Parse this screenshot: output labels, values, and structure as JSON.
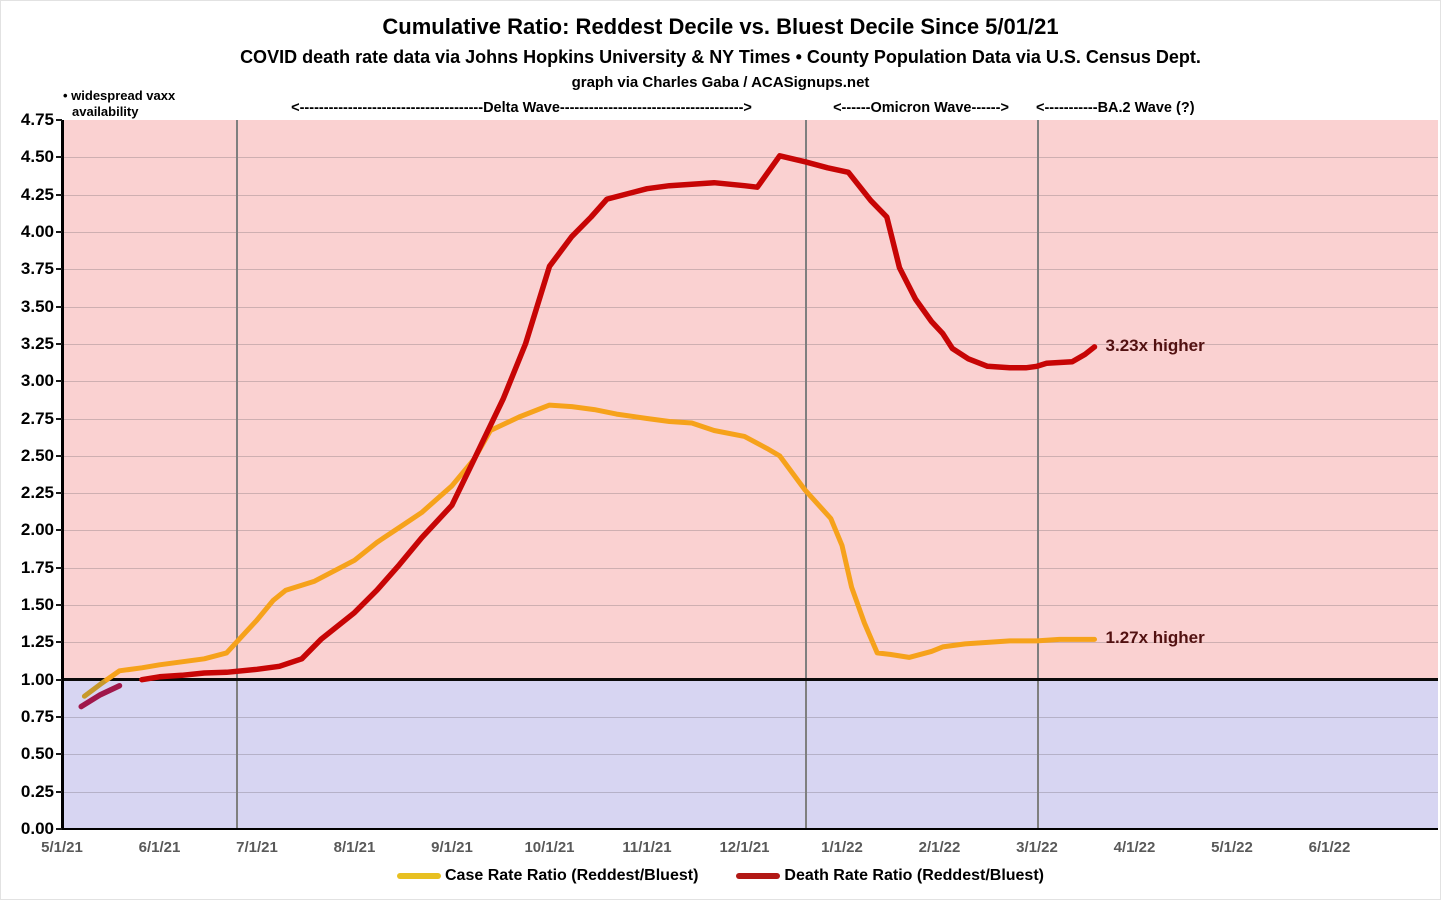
{
  "header": {
    "title": "Cumulative Ratio: Reddest Decile vs. Bluest Decile Since 5/01/21",
    "subtitle": "COVID death rate data via Johns Hopkins University & NY Times • County Population Data via U.S. Census Dept.",
    "credit": "graph via Charles Gaba / ACASignups.net"
  },
  "annotations": {
    "vaxx_note_line1": "• widespread vaxx",
    "vaxx_note_line2": "availability",
    "delta_wave": "<--------------------------------------Delta Wave-------------------------------------->",
    "omicron_wave": "<------Omicron Wave------>",
    "ba2_wave": "<-----------BA.2 Wave (?)"
  },
  "end_labels": {
    "death": "3.23x higher",
    "case": "1.27x higher"
  },
  "legend": [
    {
      "label": "Case Rate Ratio (Reddest/Bluest)",
      "color": "#e8c021"
    },
    {
      "label": "Death Rate Ratio (Reddest/Bluest)",
      "color": "#b21815"
    }
  ],
  "colors": {
    "above_one_background": "#fad1d1",
    "below_one_background": "#d7d5f2",
    "one_ratio_line": "#0a0a0a",
    "wave_boundary_line": "#7f7f7f",
    "end_label_text": "#521111",
    "x_label_text": "#595959"
  },
  "chart_data": {
    "type": "line",
    "title": "Cumulative Ratio: Reddest Decile vs. Bluest Decile Since 5/01/21",
    "x_axis": {
      "tick_labels": [
        "5/1/21",
        "6/1/21",
        "7/1/21",
        "8/1/21",
        "9/1/21",
        "10/1/21",
        "11/1/21",
        "12/1/21",
        "1/1/22",
        "2/1/22",
        "3/1/22",
        "4/1/22",
        "5/1/22",
        "6/1/22"
      ],
      "range": [
        "5/1/21",
        "7/1/22"
      ],
      "grid": false
    },
    "y_axis": {
      "min": 0,
      "max": 4.75,
      "step": 0.25,
      "tick_labels": [
        "4.75",
        "4.50",
        "4.25",
        "4.00",
        "3.75",
        "3.50",
        "3.25",
        "3.00",
        "2.75",
        "2.50",
        "2.25",
        "2.00",
        "1.75",
        "1.50",
        "1.25",
        "1.00",
        "0.75",
        "0.50",
        "0.25",
        "0.00"
      ],
      "grid": true,
      "reference_line": 1.0
    },
    "wave_boundaries": [
      {
        "date": "6/25/21",
        "label": "Delta Wave start"
      },
      {
        "date": "12/20/21",
        "label": "Omicron Wave start"
      },
      {
        "date": "3/1/22",
        "label": "BA.2 Wave start"
      }
    ],
    "legend_position": "bottom-center",
    "series": [
      {
        "name": "Case Rate Ratio (Reddest/Bluest)",
        "color": "#f6a21b",
        "below_one_color": "#c7992b",
        "stroke_width": 5,
        "final_label": "1.27x higher",
        "points": [
          [
            "5/8/21",
            0.89
          ],
          [
            "5/13/21",
            0.97
          ],
          [
            "5/19/21",
            1.06
          ],
          [
            "5/26/21",
            1.08
          ],
          [
            "6/1/21",
            1.1
          ],
          [
            "6/8/21",
            1.12
          ],
          [
            "6/15/21",
            1.14
          ],
          [
            "6/22/21",
            1.18
          ],
          [
            "7/1/21",
            1.4
          ],
          [
            "7/6/21",
            1.53
          ],
          [
            "7/10/21",
            1.6
          ],
          [
            "7/19/21",
            1.66
          ],
          [
            "8/1/21",
            1.8
          ],
          [
            "8/8/21",
            1.92
          ],
          [
            "8/15/21",
            2.02
          ],
          [
            "8/22/21",
            2.12
          ],
          [
            "9/1/21",
            2.3
          ],
          [
            "9/8/21",
            2.48
          ],
          [
            "9/13/21",
            2.67
          ],
          [
            "9/22/21",
            2.76
          ],
          [
            "10/1/21",
            2.84
          ],
          [
            "10/8/21",
            2.83
          ],
          [
            "10/15/21",
            2.81
          ],
          [
            "10/22/21",
            2.78
          ],
          [
            "11/1/21",
            2.75
          ],
          [
            "11/8/21",
            2.73
          ],
          [
            "11/15/21",
            2.72
          ],
          [
            "11/22/21",
            2.67
          ],
          [
            "12/1/21",
            2.63
          ],
          [
            "12/8/21",
            2.55
          ],
          [
            "12/12/21",
            2.5
          ],
          [
            "12/20/21",
            2.27
          ],
          [
            "12/28/21",
            2.08
          ],
          [
            "1/1/22",
            1.9
          ],
          [
            "1/4/22",
            1.62
          ],
          [
            "1/8/22",
            1.38
          ],
          [
            "1/12/22",
            1.18
          ],
          [
            "1/16/22",
            1.17
          ],
          [
            "1/22/22",
            1.15
          ],
          [
            "1/29/22",
            1.19
          ],
          [
            "2/2/22",
            1.22
          ],
          [
            "2/9/22",
            1.24
          ],
          [
            "2/16/22",
            1.25
          ],
          [
            "2/23/22",
            1.26
          ],
          [
            "3/1/22",
            1.26
          ],
          [
            "3/8/22",
            1.27
          ],
          [
            "3/19/22",
            1.27
          ]
        ]
      },
      {
        "name": "Death Rate Ratio (Reddest/Bluest)",
        "color": "#c70505",
        "below_one_color": "#a0174b",
        "stroke_width": 5.5,
        "final_label": "3.23x higher",
        "points": [
          [
            "5/7/21",
            0.82
          ],
          [
            "5/13/21",
            0.9
          ],
          [
            "5/19/21",
            0.96
          ],
          [
            "5/26/21",
            1.0
          ],
          [
            "6/1/21",
            1.02
          ],
          [
            "6/8/21",
            1.03
          ],
          [
            "6/15/21",
            1.045
          ],
          [
            "6/22/21",
            1.05
          ],
          [
            "7/1/21",
            1.07
          ],
          [
            "7/8/21",
            1.09
          ],
          [
            "7/15/21",
            1.14
          ],
          [
            "7/21/21",
            1.27
          ],
          [
            "8/1/21",
            1.45
          ],
          [
            "8/8/21",
            1.6
          ],
          [
            "8/15/21",
            1.77
          ],
          [
            "8/22/21",
            1.95
          ],
          [
            "9/1/21",
            2.17
          ],
          [
            "9/8/21",
            2.48
          ],
          [
            "9/17/21",
            2.88
          ],
          [
            "9/24/21",
            3.25
          ],
          [
            "10/1/21",
            3.77
          ],
          [
            "10/8/21",
            3.97
          ],
          [
            "10/14/21",
            4.1
          ],
          [
            "10/19/21",
            4.22
          ],
          [
            "11/1/21",
            4.29
          ],
          [
            "11/8/21",
            4.31
          ],
          [
            "11/15/21",
            4.32
          ],
          [
            "11/22/21",
            4.33
          ],
          [
            "12/1/21",
            4.31
          ],
          [
            "12/5/21",
            4.3
          ],
          [
            "12/12/21",
            4.51
          ],
          [
            "12/20/21",
            4.47
          ],
          [
            "12/27/21",
            4.43
          ],
          [
            "1/3/22",
            4.4
          ],
          [
            "1/10/22",
            4.21
          ],
          [
            "1/15/22",
            4.1
          ],
          [
            "1/19/22",
            3.76
          ],
          [
            "1/24/22",
            3.55
          ],
          [
            "1/29/22",
            3.4
          ],
          [
            "2/2/22",
            3.32
          ],
          [
            "2/5/22",
            3.22
          ],
          [
            "2/10/22",
            3.15
          ],
          [
            "2/16/22",
            3.1
          ],
          [
            "2/23/22",
            3.09
          ],
          [
            "2/28/22",
            3.09
          ],
          [
            "3/1/22",
            3.1
          ],
          [
            "3/4/22",
            3.12
          ],
          [
            "3/12/22",
            3.13
          ],
          [
            "3/16/22",
            3.18
          ],
          [
            "3/19/22",
            3.23
          ]
        ]
      }
    ]
  }
}
